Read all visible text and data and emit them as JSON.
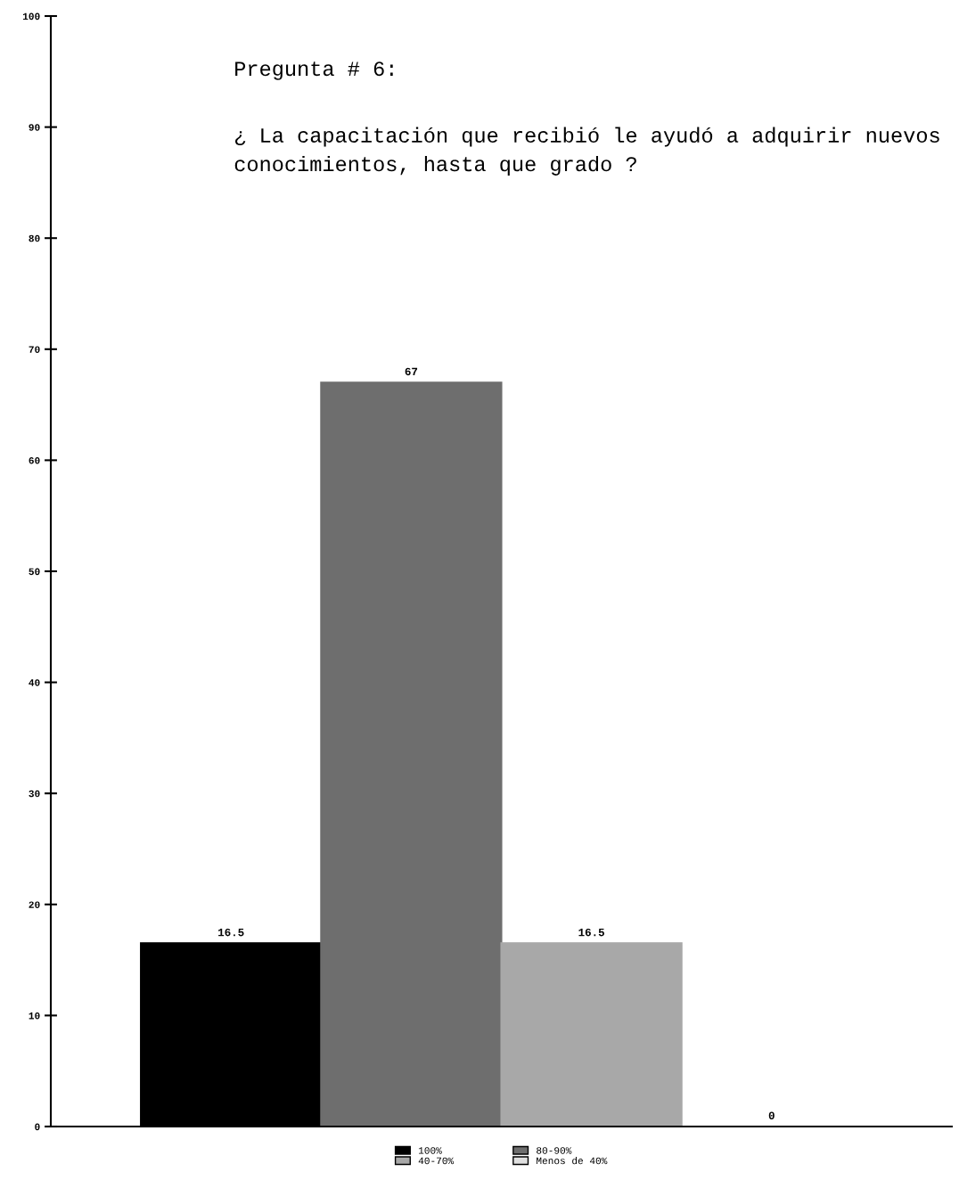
{
  "chart_data": {
    "type": "bar",
    "title": "Pregunta # 6:",
    "subtitle": "¿ La capacitación que recibió le ayudó a adquirir nuevos conocimientos, hasta que grado ?",
    "categories": [
      null
    ],
    "series": [
      {
        "name": "100%",
        "color": "#000000",
        "values": [
          16.5
        ]
      },
      {
        "name": "80-90%",
        "color": "#6e6e6e",
        "values": [
          67
        ]
      },
      {
        "name": "40-70%",
        "color": "#a8a8a8",
        "values": [
          16.5
        ]
      },
      {
        "name": "Menos de 40%",
        "color": "#e0e0e0",
        "values": [
          0
        ]
      }
    ],
    "ylim": [
      0,
      100
    ],
    "yticks": [
      0,
      10,
      20,
      30,
      40,
      50,
      60,
      70,
      80,
      90,
      100
    ],
    "data_labels": true,
    "legend": "bottom",
    "grid": false,
    "tick_labels": "y"
  }
}
